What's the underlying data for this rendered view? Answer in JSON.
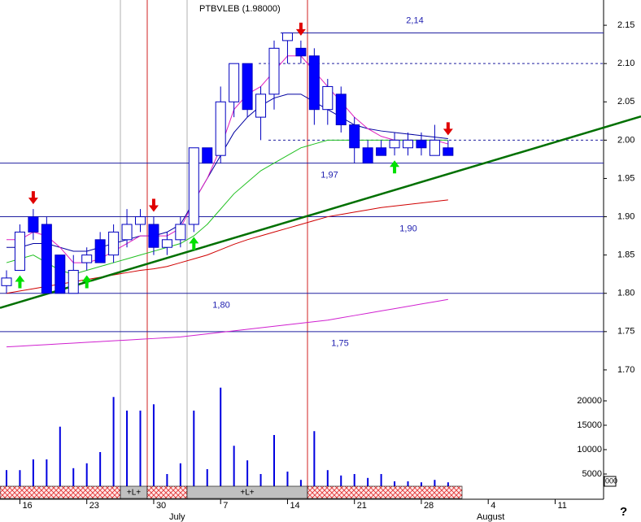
{
  "chart_data": {
    "type": "candlestick",
    "title": "PTBVLEB (1.98000)",
    "candles": {
      "open": [
        1.81,
        1.83,
        1.9,
        1.89,
        1.85,
        1.8,
        1.84,
        1.87,
        1.85,
        1.87,
        1.89,
        1.89,
        1.86,
        1.87,
        1.89,
        1.99,
        1.98,
        2.05,
        2.1,
        2.03,
        2.06,
        2.13,
        2.12,
        2.11,
        2.04,
        2.06,
        2.02,
        1.99,
        1.99,
        1.99,
        1.99,
        2.0,
        1.98,
        1.99
      ],
      "high": [
        1.83,
        1.89,
        1.91,
        1.9,
        1.85,
        1.85,
        1.86,
        1.88,
        1.89,
        1.91,
        1.91,
        1.9,
        1.88,
        1.9,
        1.99,
        1.99,
        2.07,
        2.1,
        2.1,
        2.07,
        2.13,
        2.14,
        2.13,
        2.12,
        2.08,
        2.07,
        2.03,
        2.0,
        2.0,
        2.01,
        2.01,
        2.01,
        2.02,
        2.0
      ],
      "low": [
        1.8,
        1.83,
        1.87,
        1.8,
        1.8,
        1.8,
        1.83,
        1.84,
        1.84,
        1.86,
        1.88,
        1.85,
        1.85,
        1.86,
        1.88,
        1.97,
        1.97,
        2.03,
        2.03,
        2.0,
        2.04,
        2.1,
        2.1,
        2.02,
        2.02,
        2.01,
        1.97,
        1.97,
        1.98,
        1.98,
        1.98,
        1.98,
        1.98,
        1.98
      ],
      "close": [
        1.82,
        1.88,
        1.88,
        1.8,
        1.8,
        1.83,
        1.85,
        1.84,
        1.88,
        1.89,
        1.9,
        1.86,
        1.87,
        1.89,
        1.99,
        1.97,
        2.05,
        2.1,
        2.04,
        2.06,
        2.12,
        2.14,
        2.11,
        2.04,
        2.07,
        2.02,
        1.99,
        1.97,
        1.98,
        2.0,
        2.0,
        1.99,
        2.0,
        1.98
      ]
    },
    "up_color": "#ffffff",
    "down_color": "#0000ff",
    "moving_averages": [
      {
        "color": "#0000a0",
        "values": [
          1.86,
          1.86,
          1.865,
          1.865,
          1.86,
          1.855,
          1.855,
          1.86,
          1.865,
          1.87,
          1.875,
          1.875,
          1.88,
          1.89,
          1.92,
          1.95,
          1.98,
          2.01,
          2.03,
          2.045,
          2.055,
          2.06,
          2.06,
          2.05,
          2.04,
          2.03,
          2.02,
          2.015,
          2.012,
          2.01,
          2.008,
          2.006,
          2.004,
          2.002
        ]
      },
      {
        "color": "#e020c0",
        "values": [
          1.87,
          1.87,
          1.88,
          1.875,
          1.86,
          1.84,
          1.84,
          1.845,
          1.855,
          1.865,
          1.875,
          1.875,
          1.875,
          1.885,
          1.92,
          1.95,
          1.99,
          2.04,
          2.06,
          2.07,
          2.09,
          2.11,
          2.11,
          2.09,
          2.07,
          2.05,
          2.03,
          2.015,
          2.005,
          2.0,
          2.0,
          2.0,
          2.0,
          1.995
        ]
      },
      {
        "color": "#20c020",
        "values": [
          1.84,
          1.845,
          1.85,
          1.84,
          1.83,
          1.825,
          1.83,
          1.835,
          1.84,
          1.845,
          1.85,
          1.855,
          1.86,
          1.865,
          1.875,
          1.89,
          1.91,
          1.93,
          1.945,
          1.96,
          1.97,
          1.98,
          1.99,
          1.995,
          2.0,
          2.0,
          2.0,
          2.0,
          2.0,
          2.0,
          2.0,
          2.0,
          2.0,
          2.0
        ]
      },
      {
        "color": "#d00000",
        "values": [
          1.8,
          1.803,
          1.806,
          1.809,
          1.812,
          1.815,
          1.818,
          1.821,
          1.824,
          1.827,
          1.83,
          1.832,
          1.835,
          1.84,
          1.845,
          1.85,
          1.857,
          1.864,
          1.87,
          1.875,
          1.88,
          1.885,
          1.89,
          1.895,
          1.9,
          1.903,
          1.906,
          1.909,
          1.912,
          1.914,
          1.916,
          1.918,
          1.92,
          1.922
        ]
      },
      {
        "color": "#d020d0",
        "values": [
          1.73,
          1.731,
          1.732,
          1.733,
          1.734,
          1.735,
          1.736,
          1.737,
          1.738,
          1.739,
          1.74,
          1.741,
          1.742,
          1.743,
          1.745,
          1.747,
          1.749,
          1.751,
          1.753,
          1.755,
          1.757,
          1.759,
          1.761,
          1.763,
          1.765,
          1.768,
          1.771,
          1.774,
          1.777,
          1.78,
          1.783,
          1.786,
          1.789,
          1.792
        ]
      }
    ],
    "volume": {
      "color": "#0000e0",
      "values": [
        5800,
        5800,
        8000,
        8000,
        14700,
        6200,
        7200,
        9500,
        20800,
        18000,
        18000,
        19300,
        5000,
        7200,
        18000,
        6000,
        22700,
        10800,
        7800,
        5000,
        13000,
        5500,
        3800,
        13800,
        5800,
        4700,
        5000,
        4200,
        5000,
        3500,
        3500,
        3300,
        3800,
        3300
      ]
    },
    "levels": [
      {
        "value": 2.14,
        "label": "2,14"
      },
      {
        "value": 1.97,
        "label": "1,97"
      },
      {
        "value": 1.9,
        "label": "1,90"
      },
      {
        "value": 1.8,
        "label": "1,80"
      },
      {
        "value": 1.75,
        "label": "1,75"
      }
    ],
    "level_color": "#2020a0",
    "dotted_levels": [
      2.1,
      2.0
    ],
    "trendline": {
      "start": 1.781,
      "end": 2.031,
      "color": "#007000"
    },
    "sell_signals": [
      2,
      11,
      22,
      33
    ],
    "buy_signals": [
      1,
      6,
      14,
      29
    ],
    "ylim": [
      1.684,
      2.183
    ],
    "yticks": [
      2.15,
      {
        "value": 2.1,
        "label": "2.10"
      },
      2.05,
      {
        "value": 2.0,
        "label": "2.00"
      },
      1.95,
      {
        "value": 1.9,
        "label": "1.90"
      },
      1.85,
      {
        "value": 1.8,
        "label": "1.80"
      },
      1.75,
      {
        "value": 1.7,
        "label": "1.70"
      }
    ],
    "vlim": [
      0,
      23000
    ],
    "vticks": [
      20000,
      15000,
      10000,
      5000
    ],
    "vtick_extra": "000",
    "x_labels": [
      "16",
      "23",
      "30",
      "7",
      "14",
      "21",
      "28",
      "4",
      "11"
    ],
    "months": [
      "July",
      "August"
    ],
    "period_labels": [
      "+L+",
      "+L+"
    ],
    "help": "?"
  }
}
